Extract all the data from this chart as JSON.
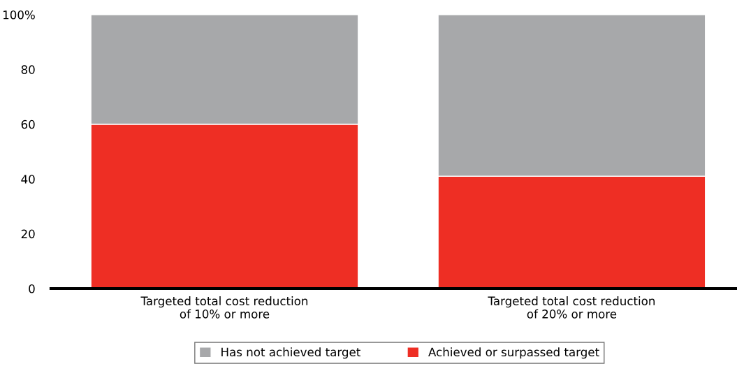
{
  "chart_data": {
    "type": "bar",
    "stacked": true,
    "categories": [
      "Targeted total cost reduction\nof 10% or more",
      "Targeted total cost reduction\nof 20% or more"
    ],
    "series": [
      {
        "name": "Achieved or surpassed target",
        "color": "#ee2e24",
        "values": [
          60,
          41
        ]
      },
      {
        "name": "Has not achieved target",
        "color": "#a7a8aa",
        "values": [
          40,
          59
        ]
      }
    ],
    "ylim": [
      0,
      100
    ],
    "yticks": [
      0,
      20,
      40,
      60,
      80,
      {
        "value": 100,
        "label": "100%"
      }
    ],
    "grid": false,
    "legend": "bottom"
  }
}
